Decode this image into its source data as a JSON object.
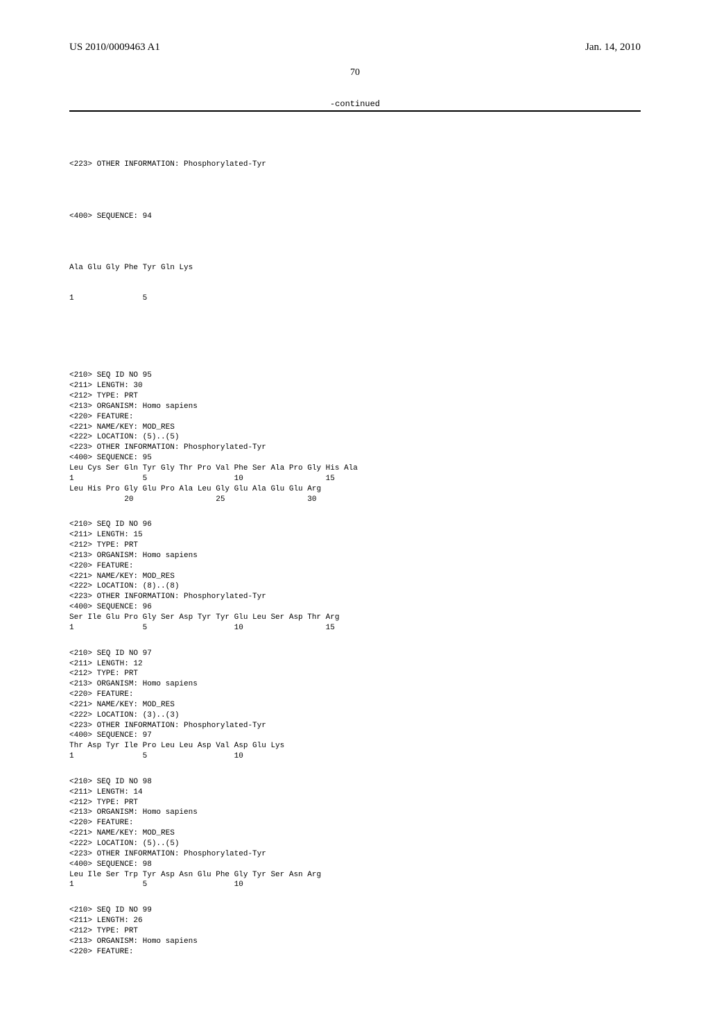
{
  "header": {
    "pub_number": "US 2010/0009463 A1",
    "pub_date": "Jan. 14, 2010"
  },
  "page_number": "70",
  "continued_label": "-continued",
  "preamble": {
    "lines": [
      "<223> OTHER INFORMATION: Phosphorylated-Tyr",
      "",
      "<400> SEQUENCE: 94",
      "",
      "Ala Glu Gly Phe Tyr Gln Lys",
      "1               5"
    ]
  },
  "sequences": [
    {
      "header": [
        "<210> SEQ ID NO 95",
        "<211> LENGTH: 30",
        "<212> TYPE: PRT",
        "<213> ORGANISM: Homo sapiens",
        "<220> FEATURE:",
        "<221> NAME/KEY: MOD_RES",
        "<222> LOCATION: (5)..(5)",
        "<223> OTHER INFORMATION: Phosphorylated-Tyr"
      ],
      "seq_label": "<400> SEQUENCE: 95",
      "residue_lines": [
        "Leu Cys Ser Gln Tyr Gly Thr Pro Val Phe Ser Ala Pro Gly His Ala",
        "1               5                   10                  15",
        "",
        "Leu His Pro Gly Glu Pro Ala Leu Gly Glu Ala Glu Glu Arg",
        "            20                  25                  30"
      ]
    },
    {
      "header": [
        "<210> SEQ ID NO 96",
        "<211> LENGTH: 15",
        "<212> TYPE: PRT",
        "<213> ORGANISM: Homo sapiens",
        "<220> FEATURE:",
        "<221> NAME/KEY: MOD_RES",
        "<222> LOCATION: (8)..(8)",
        "<223> OTHER INFORMATION: Phosphorylated-Tyr"
      ],
      "seq_label": "<400> SEQUENCE: 96",
      "residue_lines": [
        "Ser Ile Glu Pro Gly Ser Asp Tyr Tyr Glu Leu Ser Asp Thr Arg",
        "1               5                   10                  15"
      ]
    },
    {
      "header": [
        "<210> SEQ ID NO 97",
        "<211> LENGTH: 12",
        "<212> TYPE: PRT",
        "<213> ORGANISM: Homo sapiens",
        "<220> FEATURE:",
        "<221> NAME/KEY: MOD_RES",
        "<222> LOCATION: (3)..(3)",
        "<223> OTHER INFORMATION: Phosphorylated-Tyr"
      ],
      "seq_label": "<400> SEQUENCE: 97",
      "residue_lines": [
        "Thr Asp Tyr Ile Pro Leu Leu Asp Val Asp Glu Lys",
        "1               5                   10"
      ]
    },
    {
      "header": [
        "<210> SEQ ID NO 98",
        "<211> LENGTH: 14",
        "<212> TYPE: PRT",
        "<213> ORGANISM: Homo sapiens",
        "<220> FEATURE:",
        "<221> NAME/KEY: MOD_RES",
        "<222> LOCATION: (5)..(5)",
        "<223> OTHER INFORMATION: Phosphorylated-Tyr"
      ],
      "seq_label": "<400> SEQUENCE: 98",
      "residue_lines": [
        "Leu Ile Ser Trp Tyr Asp Asn Glu Phe Gly Tyr Ser Asn Arg",
        "1               5                   10"
      ]
    },
    {
      "header": [
        "<210> SEQ ID NO 99",
        "<211> LENGTH: 26",
        "<212> TYPE: PRT",
        "<213> ORGANISM: Homo sapiens",
        "<220> FEATURE:"
      ],
      "seq_label": "",
      "residue_lines": []
    }
  ]
}
